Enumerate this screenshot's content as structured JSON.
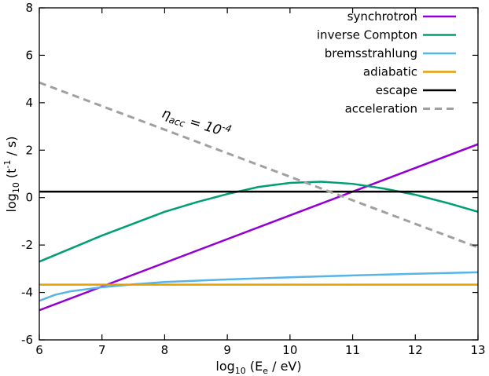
{
  "chart_data": {
    "type": "line",
    "xlabel": {
      "base": "log",
      "sub": "10",
      "mid": " (E",
      "sub2": "e",
      "end": " / eV)"
    },
    "ylabel": {
      "base": "log",
      "sub": "10",
      "mid": " (t",
      "sup": "-1",
      "end": " / s)"
    },
    "xlim": [
      6,
      13
    ],
    "ylim": [
      -6,
      8
    ],
    "xticks": [
      6,
      7,
      8,
      9,
      10,
      11,
      12,
      13
    ],
    "yticks": [
      -6,
      -4,
      -2,
      0,
      2,
      4,
      6,
      8
    ],
    "grid": false,
    "legend_position": "top-right",
    "annotation": {
      "eta": "η",
      "sub": "acc",
      "eq": " = 10",
      "sup": "-4"
    },
    "series": [
      {
        "name": "synchrotron",
        "color": "#9400d3",
        "dash": "solid",
        "x": [
          6,
          13
        ],
        "y": [
          -4.75,
          2.25
        ]
      },
      {
        "name": "inverse Compton",
        "color": "#009e73",
        "dash": "solid",
        "x": [
          6,
          6.5,
          7,
          7.5,
          8,
          8.5,
          9,
          9.5,
          10,
          10.5,
          11,
          11.5,
          12,
          12.5,
          13
        ],
        "y": [
          -2.7,
          -2.15,
          -1.6,
          -1.1,
          -0.6,
          -0.2,
          0.15,
          0.45,
          0.62,
          0.67,
          0.58,
          0.38,
          0.12,
          -0.22,
          -0.6
        ]
      },
      {
        "name": "bremsstrahlung",
        "color": "#56b4e9",
        "dash": "solid",
        "x": [
          6,
          6.25,
          6.5,
          7,
          7.5,
          8,
          9,
          10,
          11,
          12,
          13
        ],
        "y": [
          -4.35,
          -4.1,
          -3.95,
          -3.78,
          -3.66,
          -3.56,
          -3.45,
          -3.36,
          -3.28,
          -3.21,
          -3.15
        ]
      },
      {
        "name": "adiabatic",
        "color": "#e69f00",
        "dash": "solid",
        "x": [
          6,
          13
        ],
        "y": [
          -3.67,
          -3.67
        ]
      },
      {
        "name": "escape",
        "color": "#000000",
        "dash": "solid",
        "x": [
          6,
          13
        ],
        "y": [
          0.25,
          0.25
        ]
      },
      {
        "name": "acceleration",
        "color": "#a0a0a0",
        "dash": "dashed",
        "x": [
          6,
          13
        ],
        "y": [
          4.85,
          -2.1
        ]
      }
    ]
  }
}
